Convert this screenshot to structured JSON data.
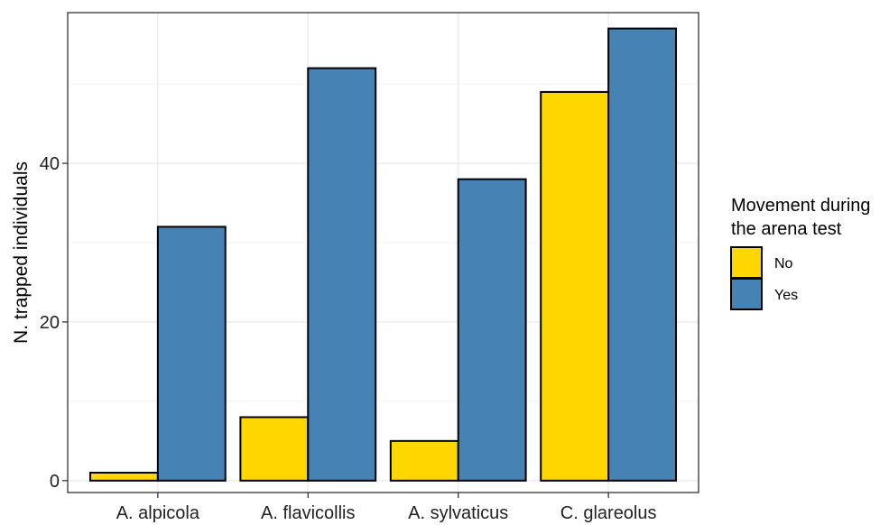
{
  "chart_data": {
    "type": "bar",
    "categories": [
      "A. alpicola",
      "A. flavicollis",
      "A. sylvaticus",
      "C. glareolus"
    ],
    "series": [
      {
        "name": "No",
        "values": [
          1,
          8,
          5,
          49
        ],
        "color": "#FFD700"
      },
      {
        "name": "Yes",
        "values": [
          32,
          52,
          38,
          57
        ],
        "color": "#4682B4"
      }
    ],
    "title": "",
    "xlabel": "",
    "ylabel": "N. trapped individuals",
    "ylim": [
      -1.5,
      59
    ],
    "yticks": [
      0,
      20,
      40
    ],
    "grid": true,
    "legend": {
      "title_lines": [
        "Movement during",
        "the arena test"
      ],
      "position": "right"
    }
  }
}
